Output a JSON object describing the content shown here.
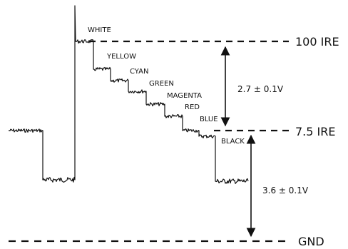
{
  "diagram": {
    "bar_labels": {
      "white": "WHITE",
      "yellow": "YELLOW",
      "cyan": "CYAN",
      "green": "GREEN",
      "magenta": "MAGENTA",
      "red": "RED",
      "blue": "BLUE",
      "black": "BLACK"
    },
    "reference_levels": {
      "white_level": "100 IRE",
      "setup_level": "7.5 IRE",
      "ground": "GND"
    },
    "amplitudes": {
      "video": "2.7 ± 0.1V",
      "sync": "3.6 ± 0.1V"
    }
  }
}
